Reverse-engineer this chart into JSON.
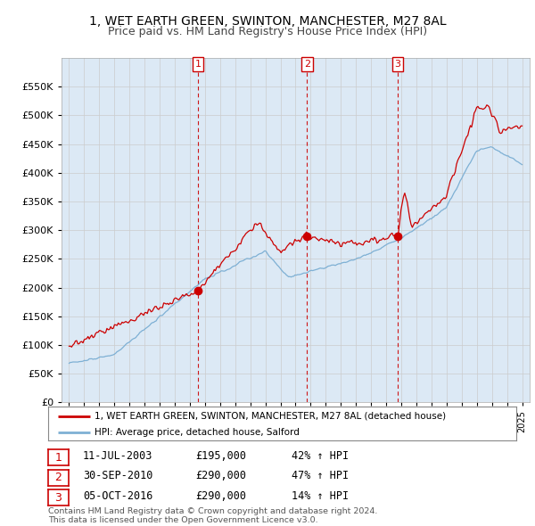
{
  "title": "1, WET EARTH GREEN, SWINTON, MANCHESTER, M27 8AL",
  "subtitle": "Price paid vs. HM Land Registry's House Price Index (HPI)",
  "background_color": "#dce9f5",
  "outer_bg_color": "#ffffff",
  "ylim": [
    0,
    600000
  ],
  "yticks": [
    0,
    50000,
    100000,
    150000,
    200000,
    250000,
    300000,
    350000,
    400000,
    450000,
    500000,
    550000
  ],
  "ytick_labels": [
    "£0",
    "£50K",
    "£100K",
    "£150K",
    "£200K",
    "£250K",
    "£300K",
    "£350K",
    "£400K",
    "£450K",
    "£500K",
    "£550K"
  ],
  "legend_label_red": "1, WET EARTH GREEN, SWINTON, MANCHESTER, M27 8AL (detached house)",
  "legend_label_blue": "HPI: Average price, detached house, Salford",
  "transactions": [
    {
      "num": 1,
      "date": "11-JUL-2003",
      "price": "£195,000",
      "pct": "42% ↑ HPI",
      "year": 2003.53,
      "price_val": 195000
    },
    {
      "num": 2,
      "date": "30-SEP-2010",
      "price": "£290,000",
      "pct": "47% ↑ HPI",
      "year": 2010.75,
      "price_val": 290000
    },
    {
      "num": 3,
      "date": "05-OCT-2016",
      "price": "£290,000",
      "pct": "14% ↑ HPI",
      "year": 2016.76,
      "price_val": 290000
    }
  ],
  "copyright": "Contains HM Land Registry data © Crown copyright and database right 2024.\nThis data is licensed under the Open Government Licence v3.0.",
  "red_color": "#cc0000",
  "blue_color": "#7eb0d4",
  "vline_color": "#cc0000",
  "grid_color": "#cccccc",
  "title_fontsize": 10,
  "subtitle_fontsize": 9
}
